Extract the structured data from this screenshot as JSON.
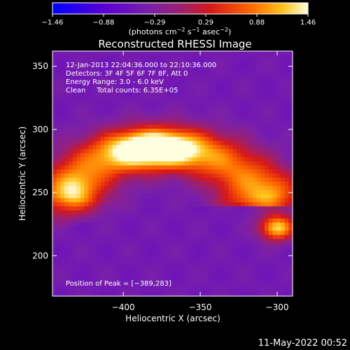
{
  "chart_data": {
    "type": "heatmap",
    "title": "Reconstructed RHESSI Image",
    "xlabel": "Heliocentric X (arcsec)",
    "ylabel": "Heliocentric Y (arcsec)",
    "xlim": [
      -446,
      -290
    ],
    "ylim": [
      168,
      362
    ],
    "x_ticks": [
      -400,
      -350,
      -300
    ],
    "x_tick_labels": [
      "−400",
      "−350",
      "−300"
    ],
    "y_ticks": [
      200,
      250,
      300,
      350
    ],
    "y_tick_labels": [
      "200",
      "250",
      "300",
      "350"
    ],
    "colorbar": {
      "range": [
        -1.46,
        1.46
      ],
      "tick_labels": [
        "−1.46",
        "−0.88",
        "−0.29",
        "0.29",
        "0.88",
        "1.46"
      ],
      "unit_prefix": "(photons cm",
      "unit_exp1": "−2",
      "unit_mid": " s",
      "unit_exp2": "−1",
      "unit_suffix": " asec",
      "unit_exp3": "−2",
      "unit_close": ")"
    },
    "annotations": [
      "12-Jan-2013 22:04:36.000 to 22:10:36.000",
      "Detectors: 3F 4F 5F 6F 7F 8F, Att 0",
      "Energy Range: 3.0 - 6.0 keV",
      "Clean     Total counts: 6.35E+05"
    ],
    "peak_text": "Position of Peak = [−389,283]",
    "peak": [
      -389,
      283
    ],
    "emission_model": {
      "background": -0.45,
      "arc_center": [
        -375,
        238
      ],
      "arc_radius_x": 62,
      "arc_radius_y": 46,
      "arc_width": 13,
      "arc_start_deg": 15,
      "arc_end_deg": 165,
      "arc_amplitude": 1.3,
      "blobs": [
        {
          "x": -380,
          "y": 285,
          "sx": 20,
          "sy": 10,
          "amp": 1.6
        },
        {
          "x": -300,
          "y": 222,
          "sx": 8,
          "sy": 7,
          "amp": 1.7
        },
        {
          "x": -300,
          "y": 250,
          "sx": 12,
          "sy": 12,
          "amp": 0.5
        },
        {
          "x": -432,
          "y": 252,
          "sx": 9,
          "sy": 9,
          "amp": 0.6
        }
      ]
    }
  },
  "footer_date": "11-May-2022 00:52"
}
